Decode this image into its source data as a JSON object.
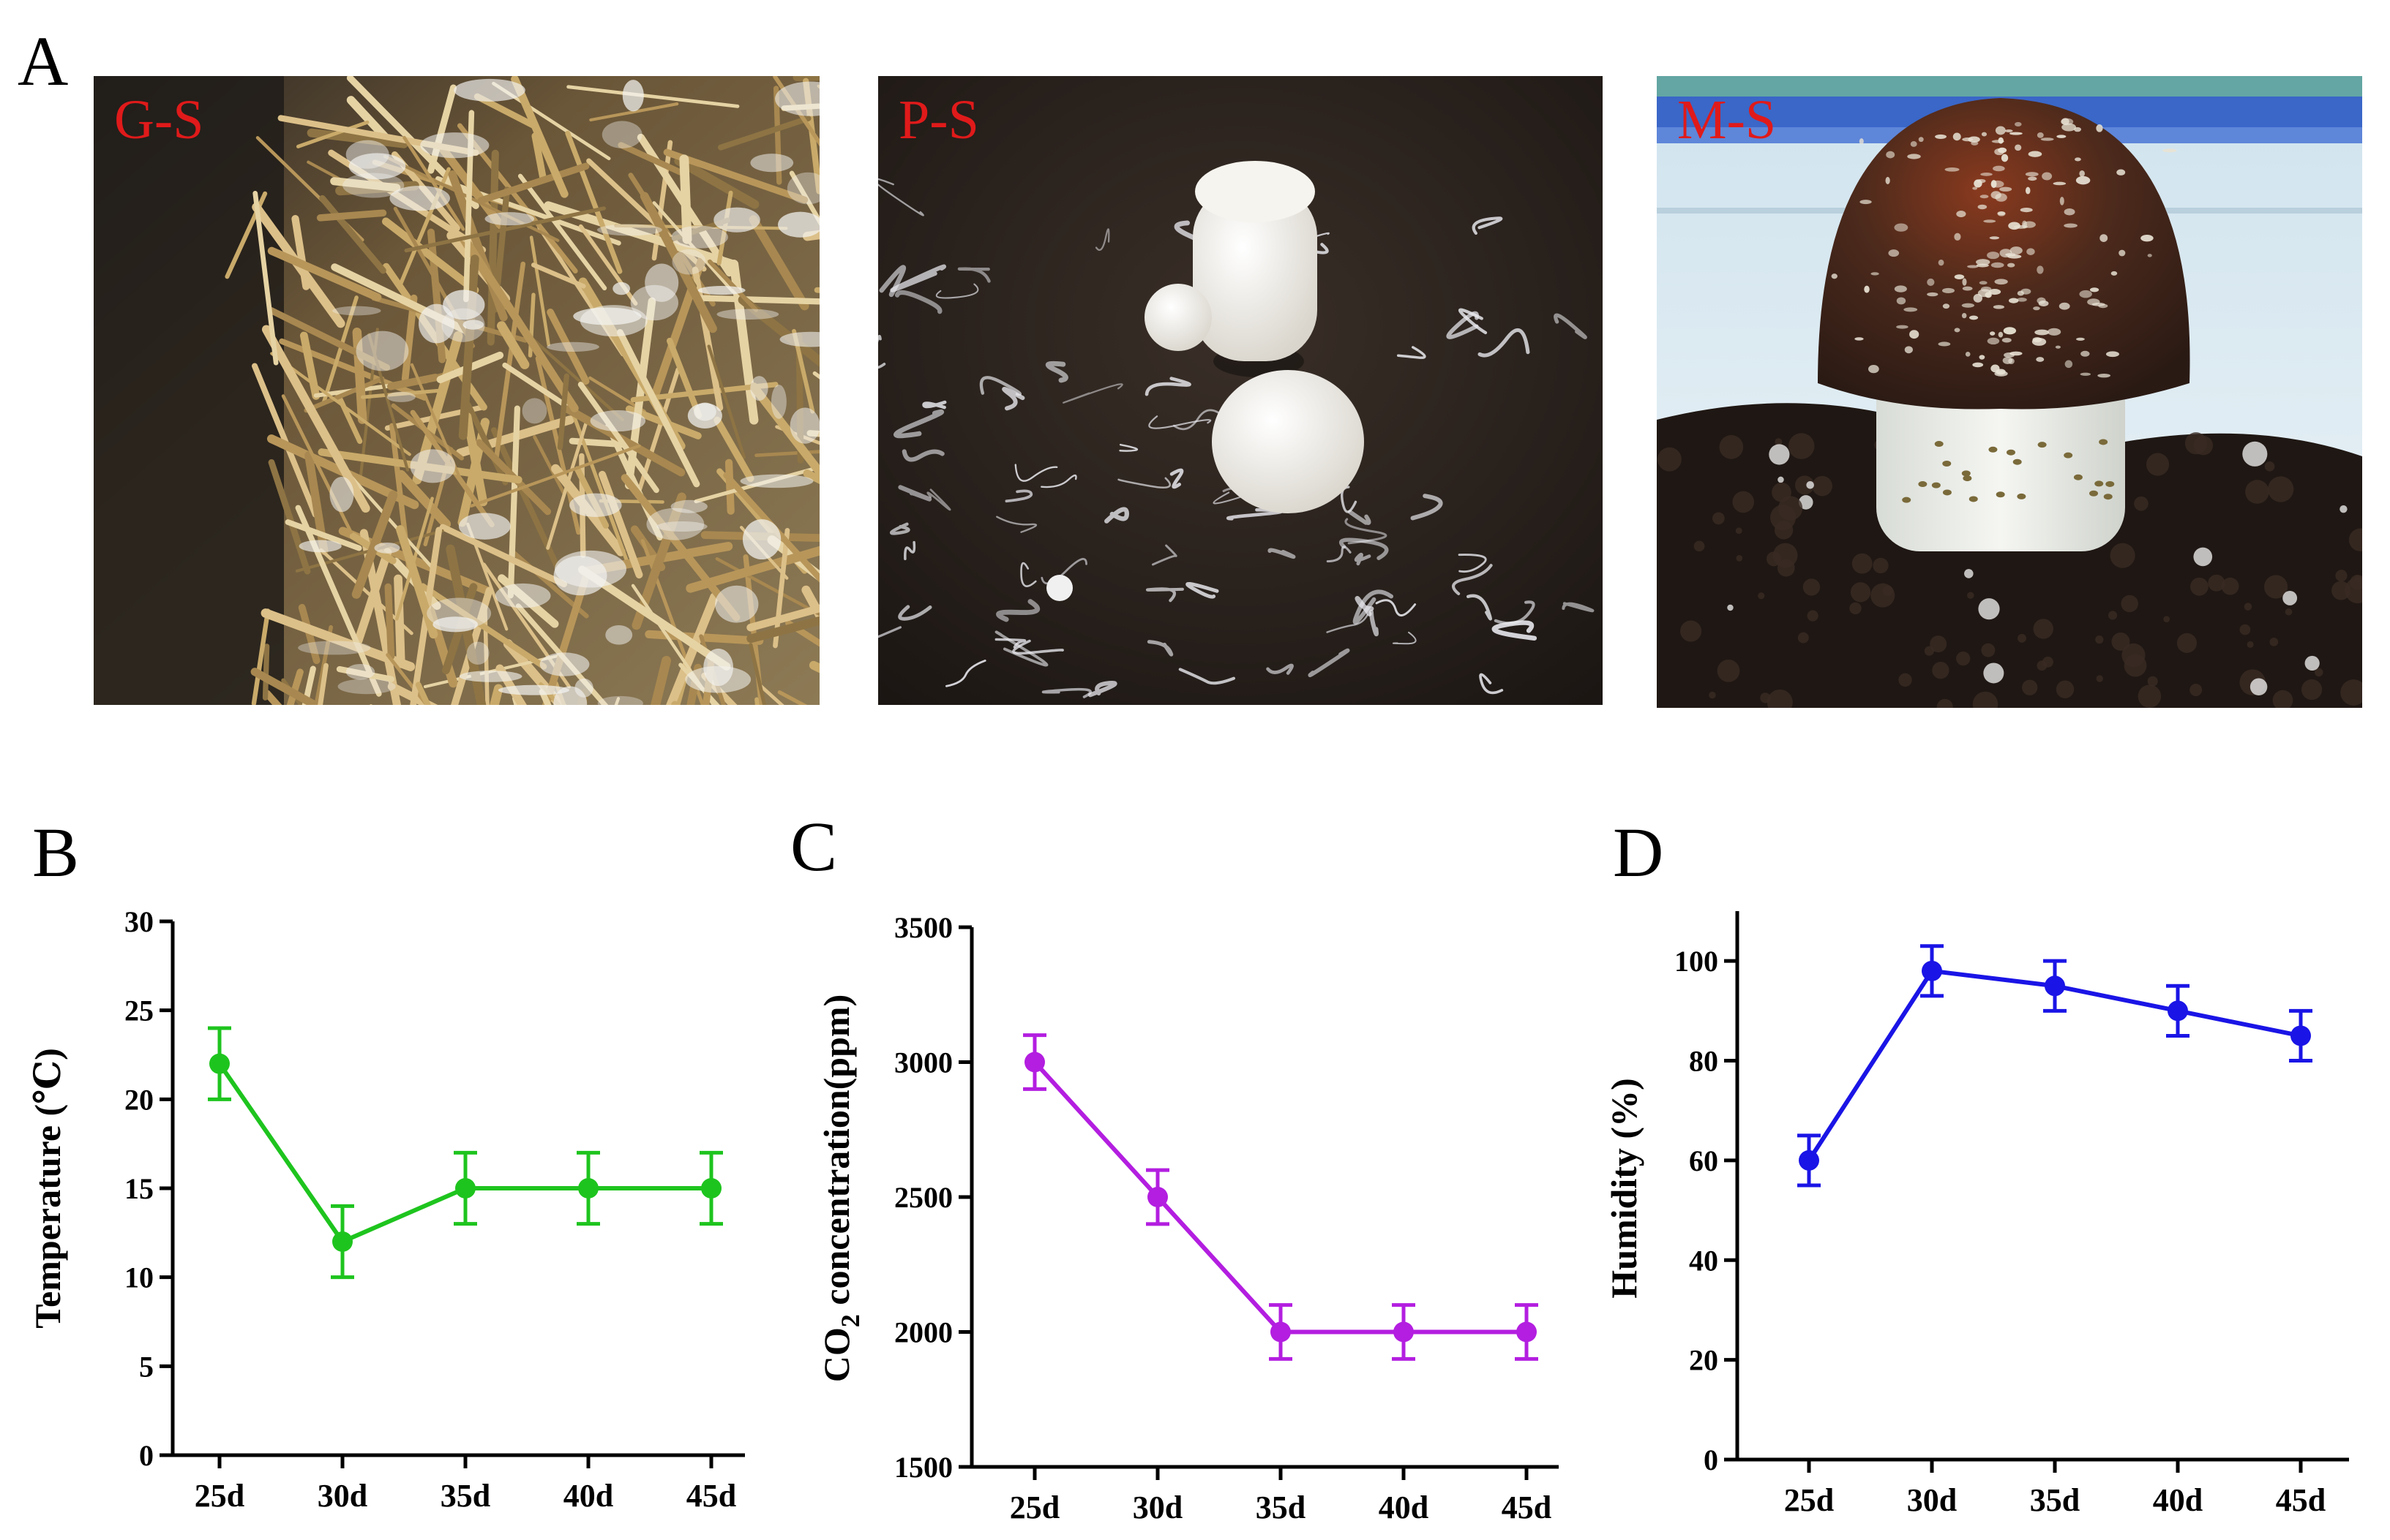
{
  "panels": {
    "A": "A",
    "B": "B",
    "C": "C",
    "D": "D"
  },
  "photos": [
    {
      "label": "G-S",
      "label_color": "#e01a1a",
      "subject": "straw substrate with white mycelium"
    },
    {
      "label": "P-S",
      "label_color": "#e01a1a",
      "subject": "white primordia on dark casing soil"
    },
    {
      "label": "M-S",
      "label_color": "#e01a1a",
      "subject": "mature mushroom with brown scaly cap"
    }
  ],
  "chart_data": [
    {
      "panel": "B",
      "type": "line",
      "categories": [
        "25d",
        "30d",
        "35d",
        "40d",
        "45d"
      ],
      "values": [
        22,
        12,
        15,
        15,
        15
      ],
      "errors": [
        2,
        2,
        2,
        2,
        2
      ],
      "ylabel": "Temperature (℃)",
      "yticks": [
        0,
        5,
        10,
        15,
        20,
        25,
        30
      ],
      "ylim": [
        0,
        30
      ],
      "color": "#1ec41e",
      "grid": false
    },
    {
      "panel": "C",
      "type": "line",
      "categories": [
        "25d",
        "30d",
        "35d",
        "40d",
        "45d"
      ],
      "values": [
        3000,
        2500,
        2000,
        2000,
        2000
      ],
      "errors": [
        100,
        100,
        100,
        100,
        100
      ],
      "ylabel_prefix": "CO",
      "ylabel_sub": "2",
      "ylabel_suffix": " concentration(ppm)",
      "yticks": [
        1500,
        2000,
        2500,
        3000,
        3500
      ],
      "ylim": [
        1500,
        3500
      ],
      "color": "#b31ee0",
      "grid": false
    },
    {
      "panel": "D",
      "type": "line",
      "categories": [
        "25d",
        "30d",
        "35d",
        "40d",
        "45d"
      ],
      "values": [
        60,
        98,
        95,
        90,
        85
      ],
      "errors": [
        5,
        5,
        5,
        5,
        5
      ],
      "ylabel": "Humidity (%)",
      "yticks": [
        0,
        20,
        40,
        60,
        80,
        100
      ],
      "ylim": [
        0,
        110
      ],
      "color": "#1a14e6",
      "grid": false
    }
  ]
}
